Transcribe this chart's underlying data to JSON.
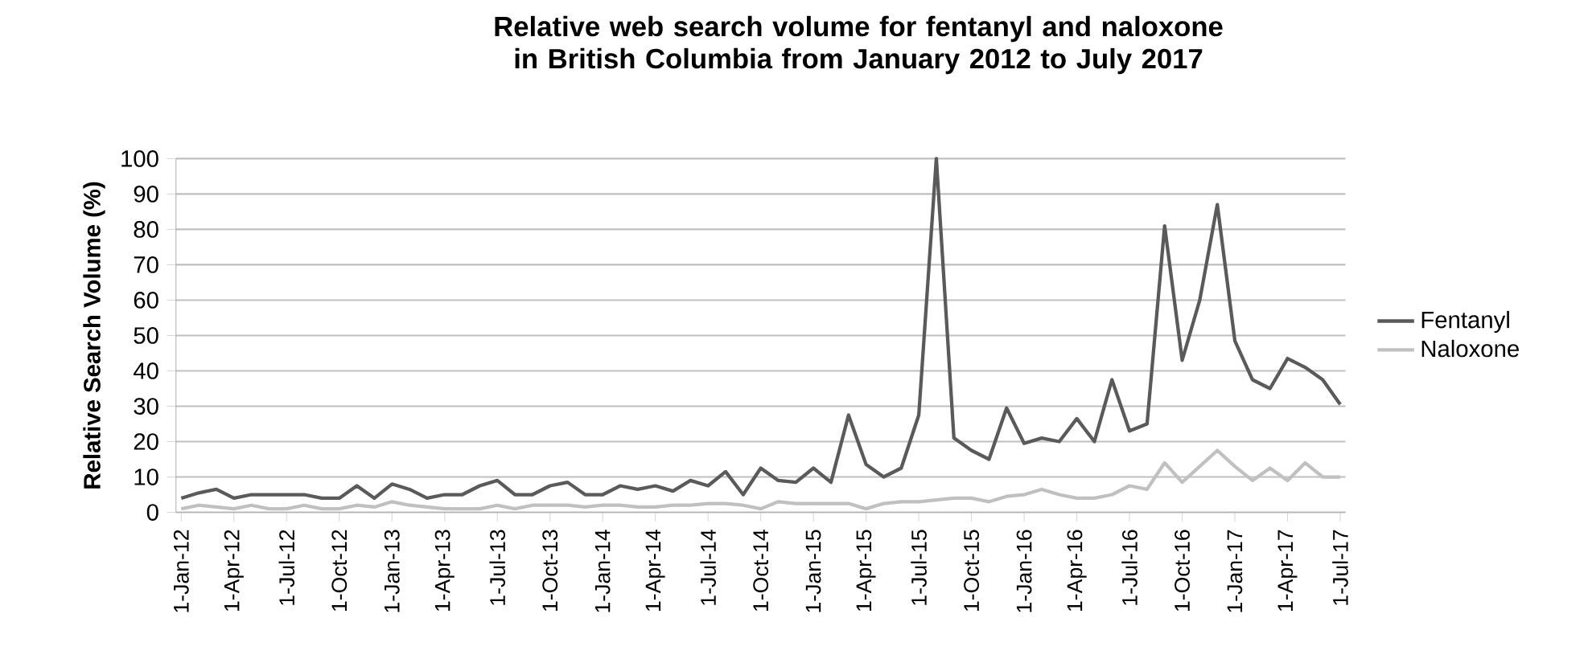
{
  "chart_data": {
    "type": "line",
    "title": "Relative web search volume for fentanyl and naloxone in British Columbia from January 2012 to July 2017",
    "ylabel": "Relative Search Volume (%)",
    "categories": [
      "1-Jan-12",
      null,
      null,
      "1-Apr-12",
      null,
      null,
      "1-Jul-12",
      null,
      null,
      "1-Oct-12",
      null,
      null,
      "1-Jan-13",
      null,
      null,
      "1-Apr-13",
      null,
      null,
      "1-Jul-13",
      null,
      null,
      "1-Oct-13",
      null,
      null,
      "1-Jan-14",
      null,
      null,
      "1-Apr-14",
      null,
      null,
      "1-Jul-14",
      null,
      null,
      "1-Oct-14",
      null,
      null,
      "1-Jan-15",
      null,
      null,
      "1-Apr-15",
      null,
      null,
      "1-Jul-15",
      null,
      null,
      "1-Oct-15",
      null,
      null,
      "1-Jan-16",
      null,
      null,
      "1-Apr-16",
      null,
      null,
      "1-Jul-16",
      null,
      null,
      "1-Oct-16",
      null,
      null,
      "1-Jan-17",
      null,
      null,
      "1-Apr-17",
      null,
      null,
      "1-Jul-17"
    ],
    "series": [
      {
        "name": "Fentanyl",
        "color": "#5a5a5a",
        "values": [
          4,
          5.5,
          6.5,
          4,
          5,
          5,
          5,
          5,
          4,
          4,
          7.5,
          4,
          8,
          6.5,
          4,
          5,
          5,
          7.5,
          9,
          5,
          5,
          7.5,
          8.5,
          5,
          5,
          7.5,
          6.5,
          7.5,
          6,
          9,
          7.5,
          11.5,
          5,
          12.5,
          9,
          8.5,
          12.5,
          8.5,
          27.5,
          13.5,
          10,
          12.5,
          27.5,
          100,
          21,
          17.5,
          15,
          29.5,
          19.5,
          21,
          20,
          26.5,
          20,
          37.5,
          23,
          25,
          81,
          43,
          60,
          87,
          48.5,
          37.5,
          35,
          43.5,
          41,
          37.5,
          30.5
        ]
      },
      {
        "name": "Naloxone",
        "color": "#c0c0c0",
        "values": [
          1,
          2,
          1.5,
          1,
          2,
          1,
          1,
          2,
          1,
          1,
          2,
          1.5,
          3,
          2,
          1.5,
          1,
          1,
          1,
          2,
          1,
          2,
          2,
          2,
          1.5,
          2,
          2,
          1.5,
          1.5,
          2,
          2,
          2.5,
          2.5,
          2,
          1,
          3,
          2.5,
          2.5,
          2.5,
          2.5,
          1,
          2.5,
          3,
          3,
          3.5,
          4,
          4,
          3,
          4.5,
          5,
          6.5,
          5,
          4,
          4,
          5,
          7.5,
          6.5,
          14,
          8.5,
          13,
          17.5,
          13,
          9,
          12.5,
          9,
          14,
          10,
          10
        ]
      }
    ],
    "ylim": [
      0,
      100
    ],
    "yticks": [
      0,
      10,
      20,
      30,
      40,
      50,
      60,
      70,
      80,
      90,
      100
    ],
    "grid": "y",
    "legend": "right",
    "marker": "none",
    "line_style": "solid"
  }
}
